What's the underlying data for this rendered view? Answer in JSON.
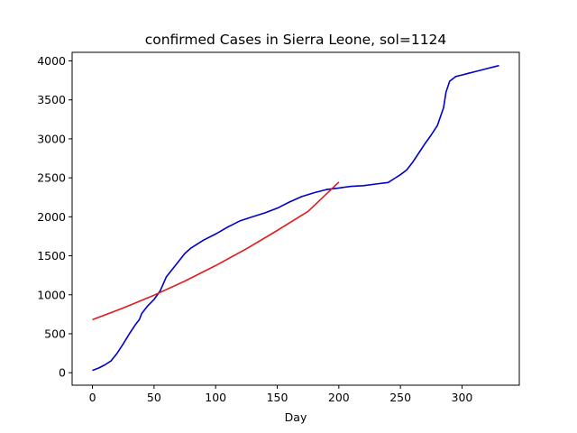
{
  "chart_data": {
    "type": "line",
    "title": "confirmed Cases in Sierra Leone, sol=1124",
    "xlabel": "Day",
    "ylabel": "",
    "xlim": [
      -16.5,
      346.5
    ],
    "ylim": [
      -160,
      4110
    ],
    "xticks": [
      0,
      50,
      100,
      150,
      200,
      250,
      300
    ],
    "yticks": [
      0,
      500,
      1000,
      1500,
      2000,
      2500,
      3000,
      3500,
      4000
    ],
    "grid": false,
    "legend": "none",
    "series": [
      {
        "color": "#0000cc",
        "x": [
          0,
          5,
          10,
          15,
          20,
          25,
          30,
          35,
          38,
          40,
          45,
          50,
          55,
          60,
          65,
          70,
          75,
          80,
          90,
          100,
          110,
          120,
          130,
          140,
          150,
          160,
          170,
          180,
          190,
          200,
          210,
          220,
          230,
          240,
          245,
          250,
          255,
          260,
          265,
          270,
          275,
          280,
          285,
          287,
          290,
          295,
          300,
          305,
          310,
          315,
          320,
          330
        ],
        "y": [
          30,
          60,
          100,
          150,
          250,
          370,
          500,
          620,
          680,
          760,
          860,
          940,
          1050,
          1230,
          1330,
          1430,
          1530,
          1600,
          1700,
          1780,
          1870,
          1950,
          2000,
          2050,
          2110,
          2190,
          2260,
          2310,
          2350,
          2370,
          2390,
          2400,
          2420,
          2440,
          2490,
          2540,
          2600,
          2700,
          2820,
          2940,
          3050,
          3170,
          3400,
          3600,
          3740,
          3800,
          3820,
          3840,
          3860,
          3880,
          3900,
          3940
        ]
      },
      {
        "color": "#e31a1c",
        "x": [
          0,
          25,
          50,
          75,
          100,
          125,
          150,
          175,
          200
        ],
        "y": [
          680,
          830,
          995,
          1175,
          1375,
          1590,
          1825,
          2070,
          2445
        ]
      }
    ]
  }
}
